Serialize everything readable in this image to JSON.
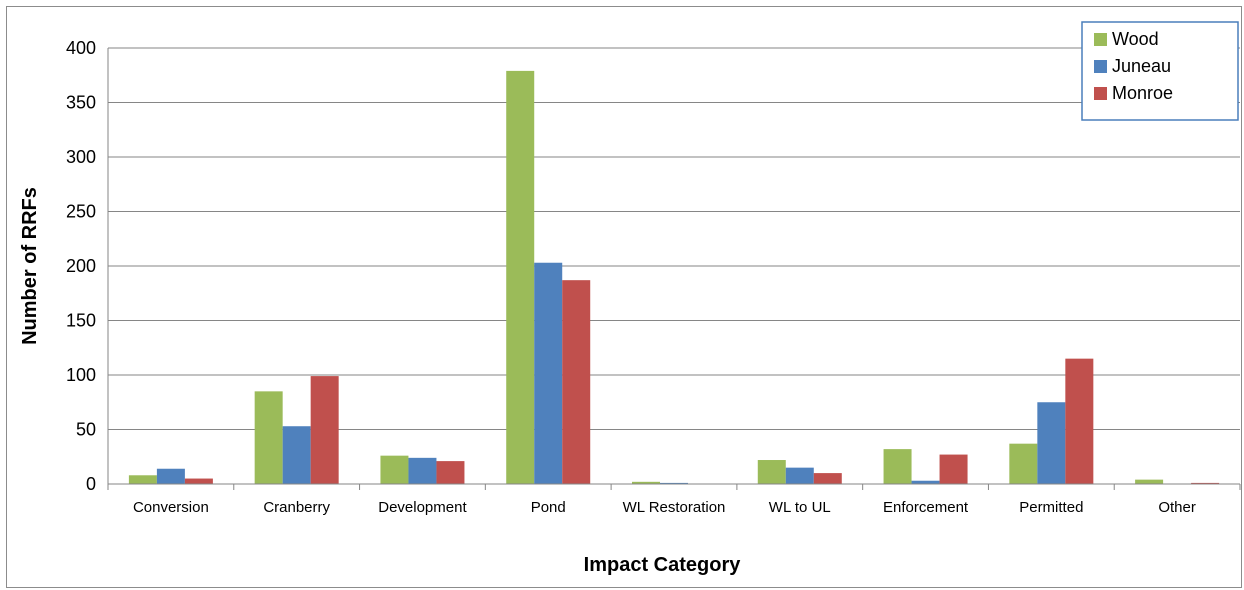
{
  "chart_data": {
    "type": "bar",
    "xlabel": "Impact Category",
    "ylabel": "Number of RRFs",
    "ylim": [
      0,
      400
    ],
    "yticks": [
      0,
      50,
      100,
      150,
      200,
      250,
      300,
      350,
      400
    ],
    "grid": "horizontal",
    "legend_position": "top-right",
    "categories": [
      "Conversion",
      "Cranberry",
      "Development",
      "Pond",
      "WL Restoration",
      "WL to UL",
      "Enforcement",
      "Permitted",
      "Other"
    ],
    "series": [
      {
        "name": "Wood",
        "color": "#9bbb59",
        "values": [
          8,
          85,
          26,
          379,
          2,
          22,
          32,
          37,
          4
        ]
      },
      {
        "name": "Juneau",
        "color": "#4f81bd",
        "values": [
          14,
          53,
          24,
          203,
          1,
          15,
          3,
          75,
          0
        ]
      },
      {
        "name": "Monroe",
        "color": "#c0504d",
        "values": [
          5,
          99,
          21,
          187,
          0,
          10,
          27,
          115,
          1
        ]
      }
    ]
  }
}
